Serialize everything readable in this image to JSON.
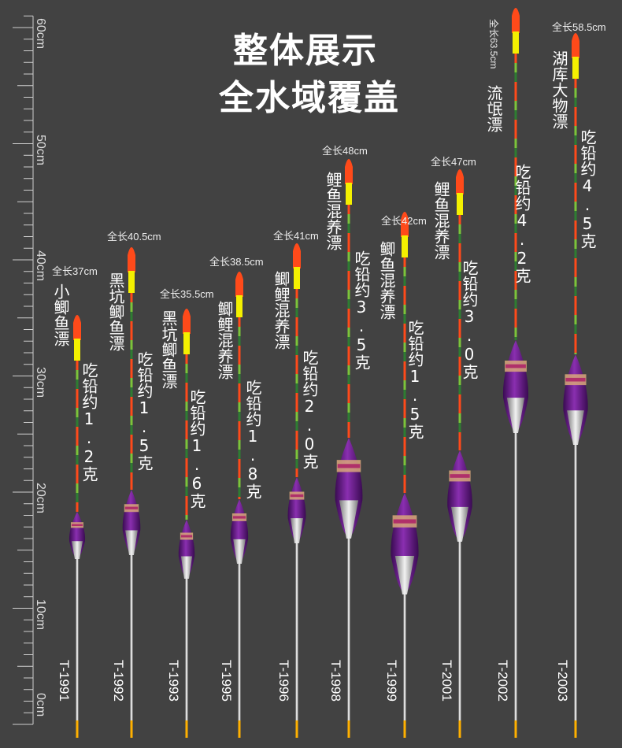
{
  "title_line1": "整体展示",
  "title_line2": "全水域覆盖",
  "ruler": {
    "labels": [
      "0cm",
      "10cm",
      "20cm",
      "30cm",
      "40cm",
      "50cm",
      "60cm"
    ]
  },
  "colors": {
    "background": "#424242",
    "body_purple": "#6a1b8a",
    "tip_red": "#ff4a1a",
    "tip_yellow": "#f4f000",
    "stem_green": "#7cc43a"
  },
  "floats": [
    {
      "model": "T-1991",
      "length": "全长37cm",
      "desc_lines": [
        "小鲫鱼漂",
        "吃铅约1.2克"
      ]
    },
    {
      "model": "T-1992",
      "length": "全长40.5cm",
      "desc_lines": [
        "黑坑鲫鱼漂",
        "吃铅约1.5克"
      ]
    },
    {
      "model": "T-1993",
      "length": "全长35.5cm",
      "desc_lines": [
        "黑坑鲫鱼漂",
        "吃铅约1.6克"
      ]
    },
    {
      "model": "T-1995",
      "length": "全长38.5cm",
      "desc_lines": [
        "鲫鲤混养漂",
        "吃铅约1.8克"
      ]
    },
    {
      "model": "T-1996",
      "length": "全长41cm",
      "desc_lines": [
        "鲫鲤混养漂",
        "吃铅约2.0克"
      ]
    },
    {
      "model": "T-1998",
      "length": "全长48cm",
      "desc_lines": [
        "鲤鱼混养漂",
        "吃铅约3.5克"
      ]
    },
    {
      "model": "T-1999",
      "length": "全长42cm",
      "desc_lines": [
        "鲫鱼混养漂",
        "吃铅约1.5克"
      ]
    },
    {
      "model": "T-2001",
      "length": "全长47cm",
      "desc_lines": [
        "鲤鱼混养漂",
        "吃铅约3.0克"
      ]
    },
    {
      "model": "T-2002",
      "length": "全长63.5cm",
      "desc_lines": [
        "流氓漂",
        "吃铅约4.2克"
      ]
    },
    {
      "model": "T-2003",
      "length": "全长58.5cm",
      "desc_lines": [
        "湖库大物漂",
        "吃铅约4.5克"
      ]
    }
  ]
}
